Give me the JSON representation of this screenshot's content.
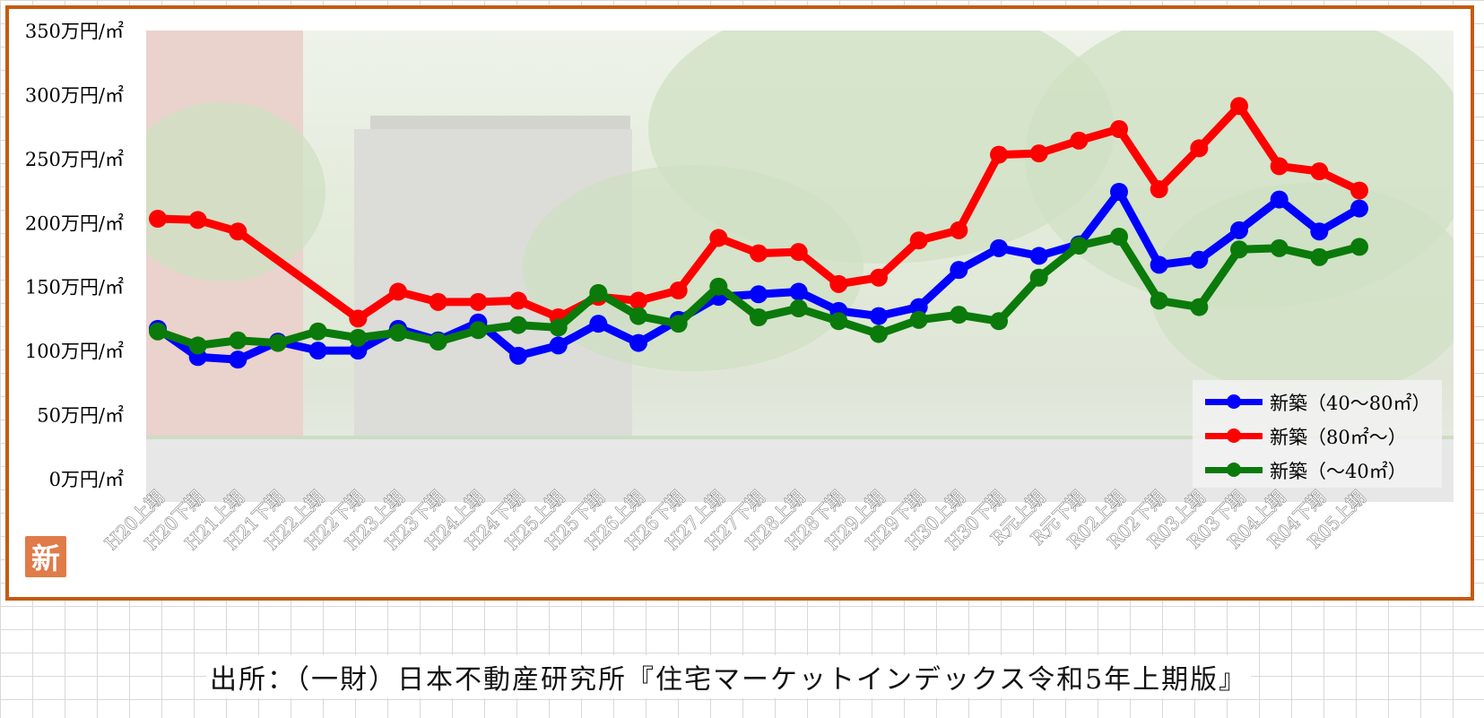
{
  "source_note": "出所：（一財）日本不動産研究所『住宅マーケットインデックス令和5年上期版』",
  "stamp_text": "新",
  "colors": {
    "frame": "#c55a11",
    "blue": "#0000ff",
    "red": "#ff0000",
    "green": "#0a7a0a"
  },
  "chart_data": {
    "type": "line",
    "title": "",
    "xlabel": "",
    "ylabel": "",
    "ylim": [
      0,
      350
    ],
    "y_ticks": [
      0,
      50,
      100,
      150,
      200,
      250,
      300,
      350
    ],
    "y_tick_labels": [
      "0万円/㎡",
      "50万円/㎡",
      "100万円/㎡",
      "150万円/㎡",
      "200万円/㎡",
      "250万円/㎡",
      "300万円/㎡",
      "350万円/㎡"
    ],
    "categories": [
      "H20上期",
      "H20下期",
      "H21上期",
      "H21下期",
      "H22上期",
      "H22下期",
      "H23上期",
      "H23下期",
      "H24上期",
      "H24下期",
      "H25上期",
      "H25下期",
      "H26上期",
      "H26下期",
      "H27上期",
      "H27下期",
      "H28上期",
      "H28下期",
      "H29上期",
      "H29下期",
      "H30上期",
      "H30下期",
      "R元上期",
      "R元下期",
      "R02上期",
      "R02下期",
      "R03上期",
      "R03下期",
      "R04上期",
      "R04下期",
      "R05上期"
    ],
    "legend_position": "bottom-right",
    "grid": false,
    "series": [
      {
        "name": "新築（40～80㎡）",
        "color": "#0000ff",
        "values": [
          117,
          95,
          93,
          107,
          100,
          100,
          117,
          108,
          122,
          96,
          104,
          121,
          106,
          124,
          142,
          144,
          146,
          131,
          127,
          134,
          163,
          180,
          174,
          183,
          224,
          167,
          171,
          194,
          218,
          193,
          211
        ]
      },
      {
        "name": "新築（80㎡～）",
        "color": "#ff0000",
        "values": [
          203,
          202,
          193,
          null,
          null,
          125,
          146,
          138,
          138,
          139,
          126,
          142,
          139,
          147,
          188,
          176,
          177,
          152,
          157,
          186,
          194,
          253,
          254,
          264,
          273,
          226,
          258,
          291,
          244,
          240,
          225
        ]
      },
      {
        "name": "新築（～40㎡）",
        "color": "#0a7a0a",
        "values": [
          115,
          104,
          108,
          106,
          115,
          110,
          114,
          107,
          116,
          120,
          118,
          145,
          127,
          121,
          150,
          126,
          133,
          123,
          113,
          124,
          128,
          123,
          157,
          182,
          189,
          139,
          134,
          179,
          180,
          173,
          181
        ]
      }
    ]
  }
}
